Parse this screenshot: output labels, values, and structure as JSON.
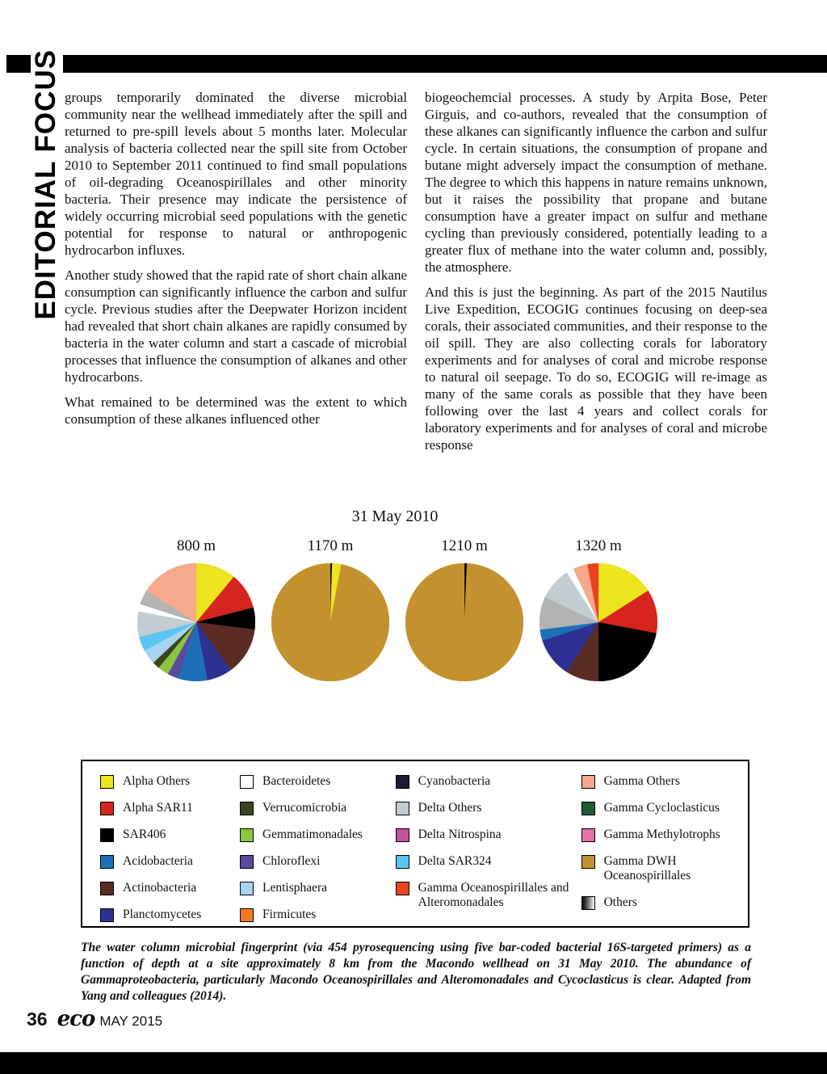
{
  "banner": {
    "text": "EDITORIAL FOCUS"
  },
  "article": {
    "left_column": [
      "groups temporarily dominated the diverse microbial community near the wellhead immediately after the spill and returned to pre-spill levels about 5 months later.  Molecular analysis of bacteria collected near the spill site from October 2010 to September 2011 continued to find small populations of oil-degrading Oceanospirillales and other minority bacteria.  Their presence may indicate the persistence of widely occurring microbial seed populations with the genetic potential for response to natural or anthropogenic hydrocarbon influxes.",
      "Another study showed that the rapid rate of short chain alkane consumption can significantly influence the carbon and sulfur cycle.  Previous studies after the Deepwater Horizon incident had revealed that short chain alkanes are rapidly consumed by bacteria in the water column and start a cascade of microbial processes that influence the consumption of alkanes and other hydrocarbons.",
      "What remained to be determined was the extent to which consumption of these alkanes influenced other"
    ],
    "right_column": [
      "biogeochemcial processes.  A study by Arpita Bose, Peter Girguis, and co-authors, revealed that the consumption of these alkanes can significantly influence the carbon and sulfur cycle.  In certain situations, the consumption of propane and butane might adversely impact the consumption of methane.  The degree to which this happens in nature remains unknown, but it raises the possibility that propane and butane consumption have a greater impact on sulfur and methane cycling than previously considered, potentially leading to a greater flux of methane into the water column and, possibly, the atmosphere.",
      "And this is just the beginning.  As part of the 2015 Nautilus Live Expedition, ECOGIG continues focusing on deep-sea corals, their associated communities, and their response to the oil spill.  They are also collecting corals for laboratory experiments and for analyses of coral and microbe response to natural oil seepage.  To do so, ECOGIG will re-image as many of the same corals as possible that they have been following over the last 4 years and collect corals for laboratory experiments and for analyses of coral and microbe response"
    ]
  },
  "figure": {
    "title": "31 May 2010",
    "caption": "The water column microbial fingerprint (via 454 pyrosequencing using five bar-coded bacterial 16S-targeted primers) as a function of depth at a site approximately 8 km from the Macondo wellhead on 31 May 2010.  The abundance of Gammaproteobacteria, particularly Macondo Oceanospirillales and Alteromonadales and Cycoclasticus is clear.  Adapted from Yang and colleagues (2014).",
    "colors": {
      "alpha_others": "#ece51f",
      "alpha_sar11": "#d6251c",
      "sar406": "#000000",
      "acidobacteria": "#1d6fb8",
      "actinobacteria": "#5a2c24",
      "planctomycetes": "#2e3192",
      "bacteroidetes": "#ffffff",
      "verrucomicrobia": "#3a4520",
      "gemmatimonadales": "#8cc63f",
      "chloroflexi": "#5b4a9e",
      "lentisphaera": "#a7d3f0",
      "firmicutes": "#f47a20",
      "cyanobacteria": "#1b1b35",
      "delta_others": "#c3cdd1",
      "delta_nitrospina": "#c2519e",
      "delta_sar324": "#5bc5f2",
      "gamma_ocean_alt": "#e8431f",
      "gamma_others": "#f7a98b",
      "gamma_cycloclasticus": "#1f5c33",
      "gamma_methylotrophs": "#e171a8",
      "gamma_dwh": "#c3922e",
      "others": "linear-gradient(90deg, #000000 0%, #666666 45%, #ffffff 100%)"
    },
    "legend_columns": [
      [
        {
          "key": "alpha_others",
          "label": "Alpha Others"
        },
        {
          "key": "alpha_sar11",
          "label": "Alpha SAR11"
        },
        {
          "key": "sar406",
          "label": "SAR406"
        },
        {
          "key": "acidobacteria",
          "label": "Acidobacteria"
        },
        {
          "key": "actinobacteria",
          "label": "Actinobacteria"
        },
        {
          "key": "planctomycetes",
          "label": "Planctomycetes"
        }
      ],
      [
        {
          "key": "bacteroidetes",
          "label": "Bacteroidetes"
        },
        {
          "key": "verrucomicrobia",
          "label": "Verrucomicrobia"
        },
        {
          "key": "gemmatimonadales",
          "label": "Gemmatimonadales"
        },
        {
          "key": "chloroflexi",
          "label": "Chloroflexi"
        },
        {
          "key": "lentisphaera",
          "label": "Lentisphaera"
        },
        {
          "key": "firmicutes",
          "label": "Firmicutes"
        }
      ],
      [
        {
          "key": "cyanobacteria",
          "label": "Cyanobacteria"
        },
        {
          "key": "delta_others",
          "label": "Delta Others"
        },
        {
          "key": "delta_nitrospina",
          "label": "Delta Nitrospina"
        },
        {
          "key": "delta_sar324",
          "label": "Delta SAR324"
        },
        {
          "key": "gamma_ocean_alt",
          "label": "Gamma Oceanospirillales and Alteromonadales"
        }
      ],
      [
        {
          "key": "gamma_others",
          "label": "Gamma Others"
        },
        {
          "key": "gamma_cycloclasticus",
          "label": "Gamma Cycloclasticus"
        },
        {
          "key": "gamma_methylotrophs",
          "label": "Gamma Methylotrophs"
        },
        {
          "key": "gamma_dwh",
          "label": "Gamma DWH Oceanospirillales"
        },
        {
          "key": "others",
          "label": "Others"
        }
      ]
    ]
  },
  "chart_data": [
    {
      "type": "pie",
      "title": "800 m",
      "units": "percent (estimated)",
      "slices": [
        {
          "key": "alpha_others",
          "label": "Alpha Others",
          "value": 11
        },
        {
          "key": "alpha_sar11",
          "label": "Alpha SAR11",
          "value": 10
        },
        {
          "key": "sar406",
          "label": "SAR406",
          "value": 6
        },
        {
          "key": "actinobacteria",
          "label": "Actinobacteria",
          "value": 13
        },
        {
          "key": "planctomycetes",
          "label": "Planctomycetes",
          "value": 7
        },
        {
          "key": "acidobacteria",
          "label": "Acidobacteria",
          "value": 8
        },
        {
          "key": "chloroflexi",
          "label": "Chloroflexi",
          "value": 3
        },
        {
          "key": "gemmatimonadales",
          "label": "Gemmatimonadales",
          "value": 3
        },
        {
          "key": "verrucomicrobia",
          "label": "Verrucomicrobia",
          "value": 2
        },
        {
          "key": "lentisphaera",
          "label": "Lentisphaera",
          "value": 4
        },
        {
          "key": "delta_sar324",
          "label": "Delta SAR324",
          "value": 4
        },
        {
          "key": "delta_others",
          "label": "Delta Others",
          "value": 7
        },
        {
          "key": "bacteroidetes",
          "label": "Bacteroidetes",
          "value": 2
        },
        {
          "key": "others",
          "label": "Others",
          "value": 4
        },
        {
          "key": "gamma_others",
          "label": "Gamma Others",
          "value": 16
        }
      ]
    },
    {
      "type": "pie",
      "title": "1170 m",
      "units": "percent (estimated)",
      "slices": [
        {
          "key": "sar406",
          "label": "SAR406",
          "value": 0.5
        },
        {
          "key": "alpha_others",
          "label": "Alpha Others",
          "value": 2.5
        },
        {
          "key": "gamma_dwh",
          "label": "Gamma DWH Oceanospirillales",
          "value": 97
        }
      ]
    },
    {
      "type": "pie",
      "title": "1210 m",
      "units": "percent (estimated)",
      "slices": [
        {
          "key": "sar406",
          "label": "SAR406",
          "value": 0.7
        },
        {
          "key": "gamma_dwh",
          "label": "Gamma DWH Oceanospirillales",
          "value": 99.3
        }
      ]
    },
    {
      "type": "pie",
      "title": "1320 m",
      "units": "percent (estimated)",
      "slices": [
        {
          "key": "alpha_others",
          "label": "Alpha Others",
          "value": 16
        },
        {
          "key": "alpha_sar11",
          "label": "Alpha SAR11",
          "value": 12
        },
        {
          "key": "sar406",
          "label": "SAR406",
          "value": 22
        },
        {
          "key": "actinobacteria",
          "label": "Actinobacteria",
          "value": 9
        },
        {
          "key": "planctomycetes",
          "label": "Planctomycetes",
          "value": 11
        },
        {
          "key": "acidobacteria",
          "label": "Acidobacteria",
          "value": 3
        },
        {
          "key": "others",
          "label": "Others",
          "value": 9
        },
        {
          "key": "delta_others",
          "label": "Delta Others",
          "value": 9
        },
        {
          "key": "bacteroidetes",
          "label": "Bacteroidetes",
          "value": 2
        },
        {
          "key": "gamma_others",
          "label": "Gamma Others",
          "value": 4
        },
        {
          "key": "gamma_ocean_alt",
          "label": "Gamma Oceanospirillales and Alteromonadales",
          "value": 3
        }
      ]
    }
  ],
  "footer": {
    "page_number": "36",
    "logo": "eco",
    "issue": "MAY 2015"
  }
}
